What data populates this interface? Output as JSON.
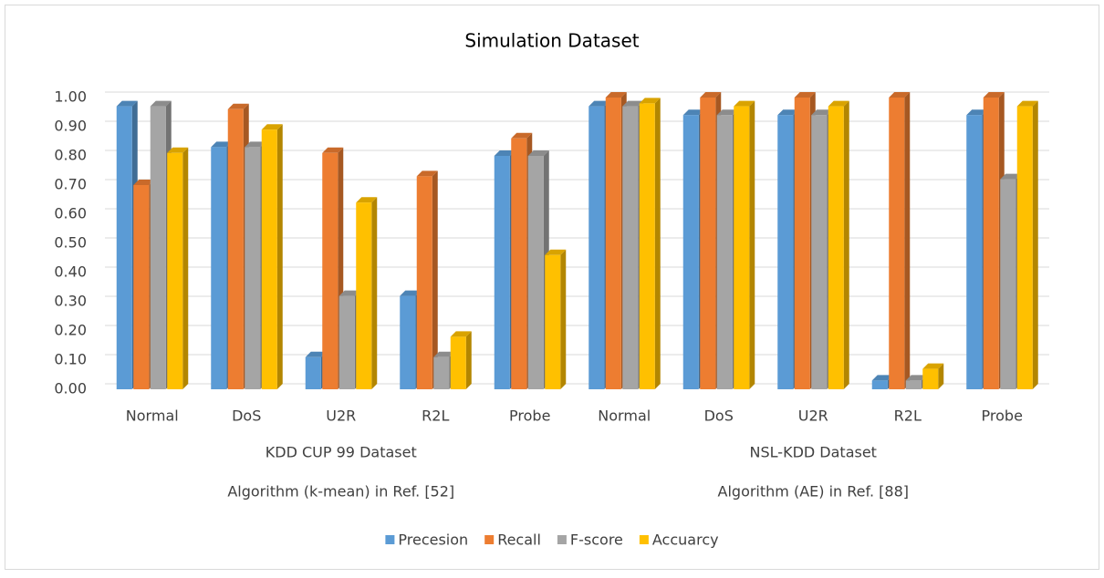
{
  "chart_data": {
    "type": "bar3d",
    "title": "Simulation Dataset",
    "categories": [
      "Normal",
      "DoS",
      "U2R",
      "R2L",
      "Probe",
      "Normal",
      "DoS",
      "U2R",
      "R2L",
      "Probe"
    ],
    "groups": [
      {
        "name": "KDD CUP 99 Dataset",
        "algorithm": "Algorithm (k-mean) in Ref. [52]",
        "size": 5
      },
      {
        "name": "NSL-KDD Dataset",
        "algorithm": "Algorithm (AE) in Ref. [88]",
        "size": 5
      }
    ],
    "series": [
      {
        "name": "Precesion",
        "color": "#5b9bd5",
        "values": [
          0.97,
          0.83,
          0.11,
          0.32,
          0.8,
          0.97,
          0.94,
          0.94,
          0.03,
          0.94
        ]
      },
      {
        "name": "Recall",
        "color": "#ed7d31",
        "values": [
          0.7,
          0.96,
          0.81,
          0.73,
          0.86,
          1.0,
          1.0,
          1.0,
          1.0,
          1.0
        ]
      },
      {
        "name": "F-score",
        "color": "#a5a5a5",
        "values": [
          0.97,
          0.83,
          0.32,
          0.11,
          0.8,
          0.97,
          0.94,
          0.94,
          0.03,
          0.72
        ]
      },
      {
        "name": "Accuarcy",
        "color": "#ffc000",
        "values": [
          0.81,
          0.89,
          0.64,
          0.18,
          0.46,
          0.98,
          0.97,
          0.97,
          0.07,
          0.97
        ]
      }
    ],
    "ylim": [
      0,
      1
    ],
    "yticks": [
      {
        "value": 0,
        "label": "0.00"
      },
      {
        "value": 0.1,
        "label": "0.10"
      },
      {
        "value": 0.2,
        "label": "0.20"
      },
      {
        "value": 0.3,
        "label": "0.30"
      },
      {
        "value": 0.4,
        "label": "0.40"
      },
      {
        "value": 0.5,
        "label": "0.50"
      },
      {
        "value": 0.6,
        "label": "0.60"
      },
      {
        "value": 0.7,
        "label": "0.70"
      },
      {
        "value": 0.8,
        "label": "0.80"
      },
      {
        "value": 0.9,
        "label": "0.90"
      },
      {
        "value": 1,
        "label": "1.00"
      }
    ],
    "grid": true,
    "legend": "bottom"
  }
}
